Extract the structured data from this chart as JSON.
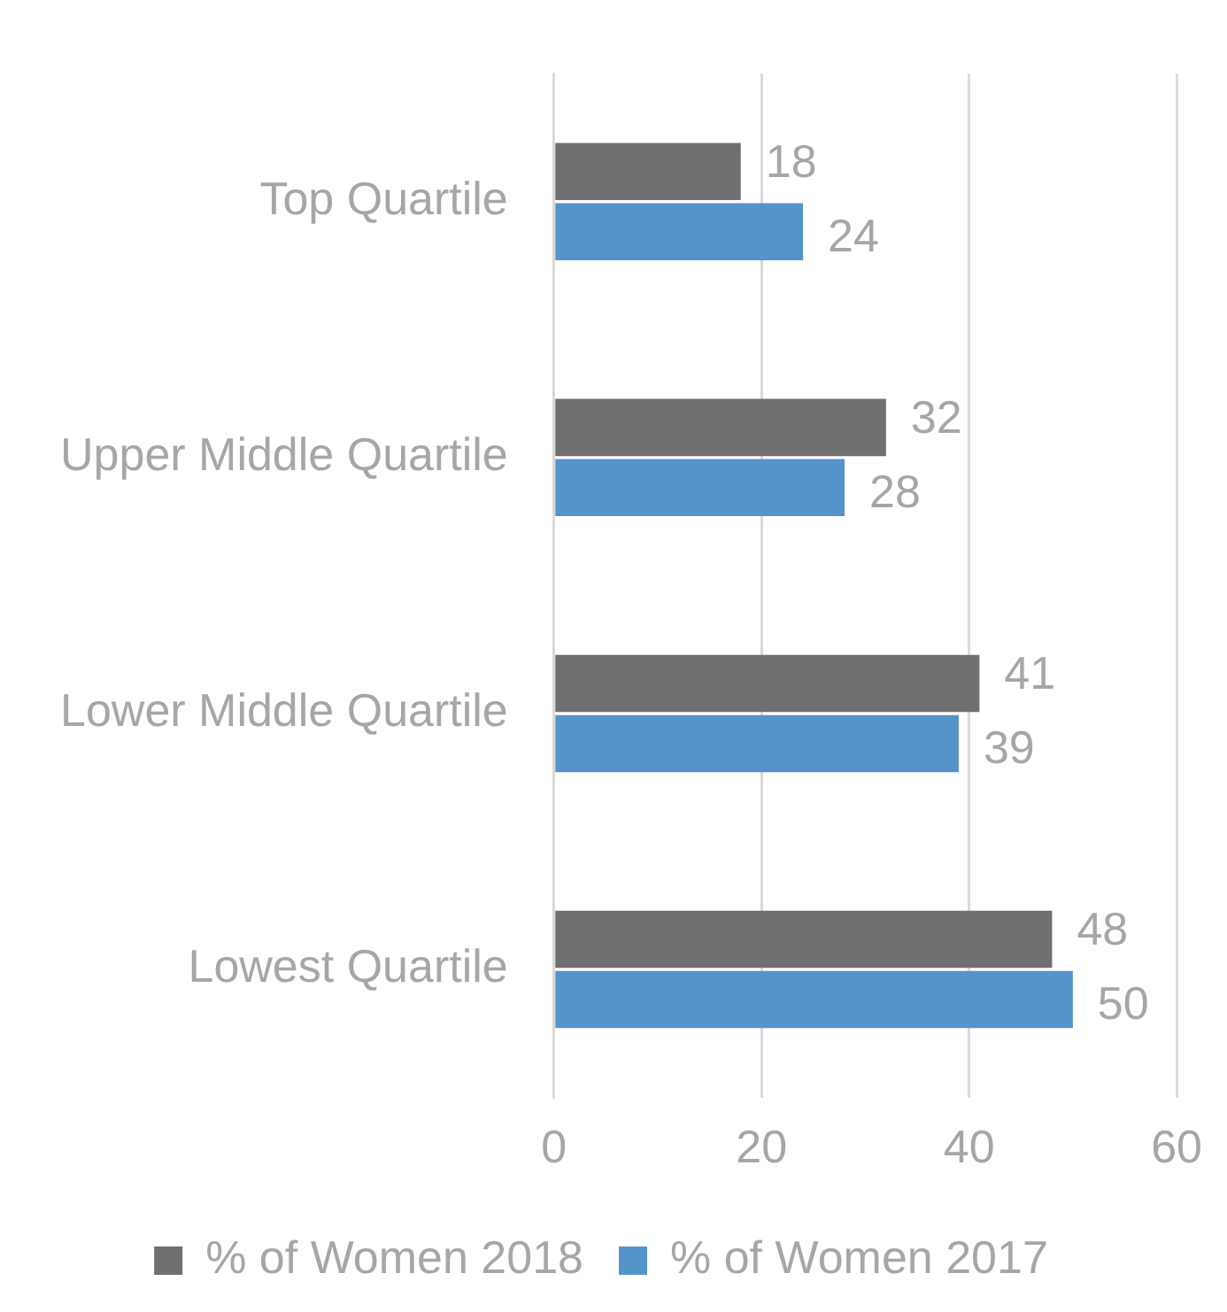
{
  "chart_data": {
    "type": "bar",
    "orientation": "horizontal",
    "categories": [
      "Top Quartile",
      "Upper Middle Quartile",
      "Lower Middle Quartile",
      "Lowest Quartile"
    ],
    "series": [
      {
        "name": "% of Women 2018",
        "color": "#707070",
        "values": [
          18,
          32,
          41,
          48
        ]
      },
      {
        "name": "% of Women 2017",
        "color": "#5593cb",
        "values": [
          24,
          28,
          39,
          50
        ]
      }
    ],
    "xlim": [
      0,
      60
    ],
    "xticks": [
      0,
      20,
      40,
      60
    ],
    "grid": "x",
    "legend": "bottom",
    "data_labels": true
  }
}
